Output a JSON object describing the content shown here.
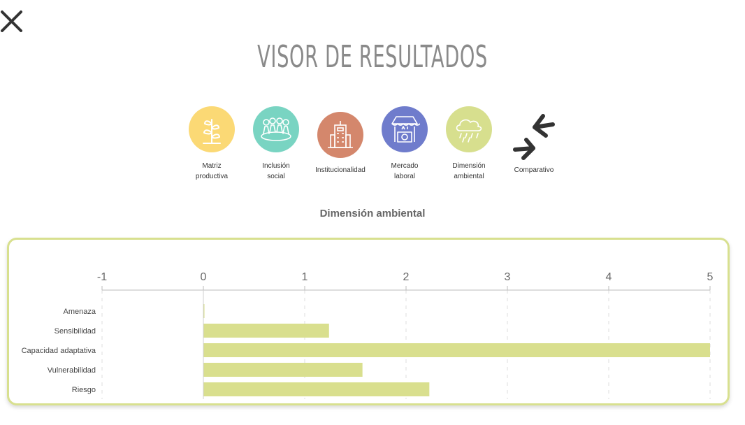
{
  "header": {
    "title": "VISOR DE RESULTADOS"
  },
  "categories": [
    {
      "label": "Matriz\nproductiva",
      "color": "#fbd975",
      "icon": "plant-icon"
    },
    {
      "label": "Inclusión\nsocial",
      "color": "#79d4c2",
      "icon": "people-icon"
    },
    {
      "label": "Institucionalidad",
      "color": "#d4876c",
      "icon": "building-icon"
    },
    {
      "label": "Mercado\nlaboral",
      "color": "#6f7ccc",
      "icon": "market-stall-icon"
    },
    {
      "label": "Dimensión\nambiental",
      "color": "#d7df8e",
      "icon": "cloud-rain-icon"
    },
    {
      "label": "Comparativo",
      "color": "#333333",
      "icon": "compare-arrows-icon"
    }
  ],
  "section": {
    "title": "Dimensión ambiental"
  },
  "colors": {
    "bar": "#d9df8e",
    "card_border": "#d8e08f",
    "grid": "#dddddd",
    "axis": "#bbbbbb"
  },
  "chart_data": {
    "type": "bar",
    "orientation": "horizontal",
    "categories": [
      "Amenaza",
      "Sensibilidad",
      "Capacidad adaptativa",
      "Vulnerabilidad",
      "Riesgo"
    ],
    "values": [
      0,
      1.24,
      5,
      1.57,
      2.23
    ],
    "xlim": [
      -1,
      5
    ],
    "xticks": [
      -1,
      0,
      1,
      2,
      3,
      4,
      5
    ],
    "axis_position": "top",
    "grid": true
  }
}
